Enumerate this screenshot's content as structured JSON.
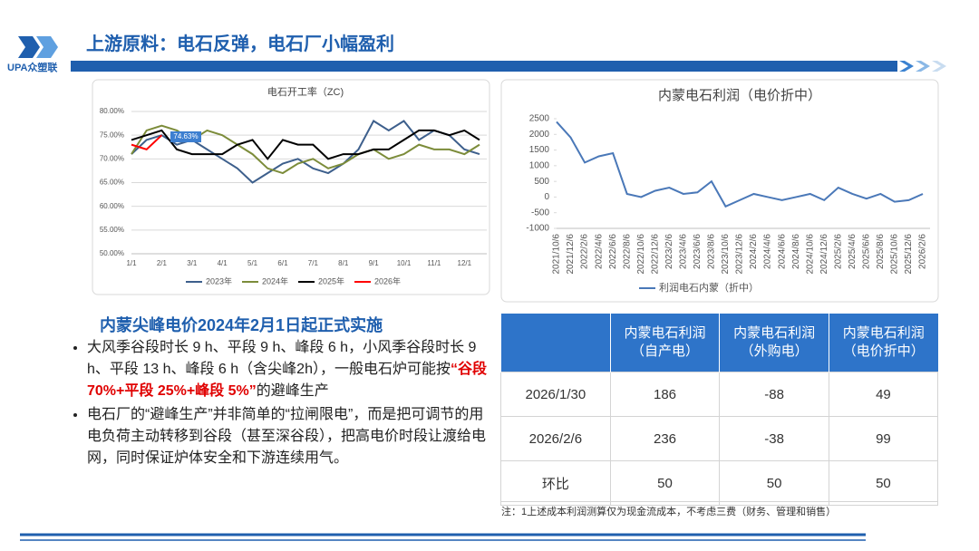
{
  "logo": "UPA众塑联",
  "header": {
    "title": "上游原料：电石反弹，电石厂小幅盈利"
  },
  "chart_data": [
    {
      "type": "line",
      "title": "电石开工率（ZC)",
      "categories": [
        "1/1",
        null,
        "2/1",
        null,
        "3/1",
        null,
        "4/1",
        null,
        "5/1",
        null,
        "6/1",
        null,
        "7/1",
        null,
        "8/1",
        null,
        "9/1",
        null,
        "10/1",
        null,
        "11/1",
        null,
        "12/1",
        null
      ],
      "series": [
        {
          "name": "2023年",
          "color": "#3d5f8c",
          "values": [
            71,
            74,
            75,
            73,
            74,
            72,
            70,
            68,
            65,
            67,
            69,
            70,
            68,
            67,
            69,
            72,
            78,
            76,
            78,
            74,
            76,
            75,
            72,
            71
          ]
        },
        {
          "name": "2024年",
          "color": "#7c8c3a",
          "values": [
            71,
            76,
            77,
            76,
            74,
            76,
            75,
            73,
            71,
            68,
            67,
            69,
            70,
            68,
            69,
            71,
            72,
            70,
            71,
            73,
            72,
            72,
            71,
            73
          ]
        },
        {
          "name": "2025年",
          "color": "#000000",
          "values": [
            74,
            75,
            76,
            72,
            71,
            71,
            71,
            73,
            74,
            70,
            74,
            73,
            73,
            70,
            71,
            71,
            72,
            72,
            74,
            76,
            76,
            75,
            76,
            74
          ]
        },
        {
          "name": "2026年",
          "color": "#ff0000",
          "values": [
            73,
            72,
            75,
            null,
            null,
            null,
            null,
            null,
            null,
            null,
            null,
            null,
            null,
            null,
            null,
            null,
            null,
            null,
            null,
            null,
            null,
            null,
            null,
            null
          ]
        }
      ],
      "annotation": "74.63%",
      "ylim": [
        50,
        80
      ],
      "yticks": [
        {
          "value": 50,
          "label": "50.00%"
        },
        {
          "value": 55,
          "label": "55.00%"
        },
        {
          "value": 60,
          "label": "60.00%"
        },
        {
          "value": 65,
          "label": "65.00%"
        },
        {
          "value": 70,
          "label": "70.00%"
        },
        {
          "value": 75,
          "label": "75.00%"
        },
        {
          "value": 80,
          "label": "80.00%"
        }
      ],
      "grid": true,
      "legend": "bottom"
    },
    {
      "type": "line",
      "title": "内蒙电石利润（电价折中）",
      "categories": [
        "2021/10/6",
        "2021/12/6",
        "2022/2/6",
        "2022/4/6",
        "2022/6/6",
        "2022/8/6",
        "2022/10/6",
        "2022/12/6",
        "2023/2/6",
        "2023/4/6",
        "2023/6/6",
        "2023/8/6",
        "2023/10/6",
        "2023/12/6",
        "2024/2/6",
        "2024/4/6",
        "2024/6/6",
        "2024/8/6",
        "2024/10/6",
        "2024/12/6",
        "2025/2/6",
        "2025/4/6",
        "2025/6/6",
        "2025/8/6",
        "2025/10/6",
        "2025/12/6",
        "2026/2/6"
      ],
      "series": [
        {
          "name": "利润电石内蒙（折中）",
          "color": "#4a78b8",
          "values": [
            2400,
            1900,
            1100,
            1300,
            1400,
            100,
            0,
            200,
            300,
            100,
            150,
            500,
            -300,
            -100,
            100,
            0,
            -100,
            0,
            100,
            -100,
            300,
            100,
            -50,
            100,
            -150,
            -100,
            99
          ]
        }
      ],
      "ylim": [
        -1000,
        2500
      ],
      "yticks": [
        -1000,
        -500,
        0,
        500,
        1000,
        1500,
        2000,
        2500
      ],
      "grid": false,
      "legend": "bottom"
    }
  ],
  "policy": {
    "heading": "内蒙尖峰电价2024年2月1日起正式实施",
    "bullets": [
      [
        "大风季谷段时长 9 h、平段 9 h、峰段 6 h，小风季谷段时长 9 h、平段 13 h、峰段 6 h（含尖峰2h），一般电石炉可能按",
        "“谷段 70%+平段 25%+峰段 5%”",
        "的避峰生产"
      ],
      [
        "电石厂的“避峰生产”并非简单的“拉闸限电”，而是把可调节的用电负荷主动转移到谷段（甚至深谷段），把高电价时段让渡给电网，同时保证炉体安全和下游连续用气。"
      ]
    ]
  },
  "table": {
    "header": [
      "内蒙电石利润（自产电）",
      "内蒙电石利润（外购电）",
      "内蒙电石利润（电价折中）"
    ],
    "rows": [
      [
        "2026/1/30",
        186,
        -88,
        49
      ],
      [
        "2026/2/6",
        236,
        -38,
        99
      ],
      [
        "环比",
        50,
        50,
        50
      ]
    ],
    "note": "注：1上述成本利润测算仅为现金流成本，不考虑三费（财务、管理和销售）"
  }
}
